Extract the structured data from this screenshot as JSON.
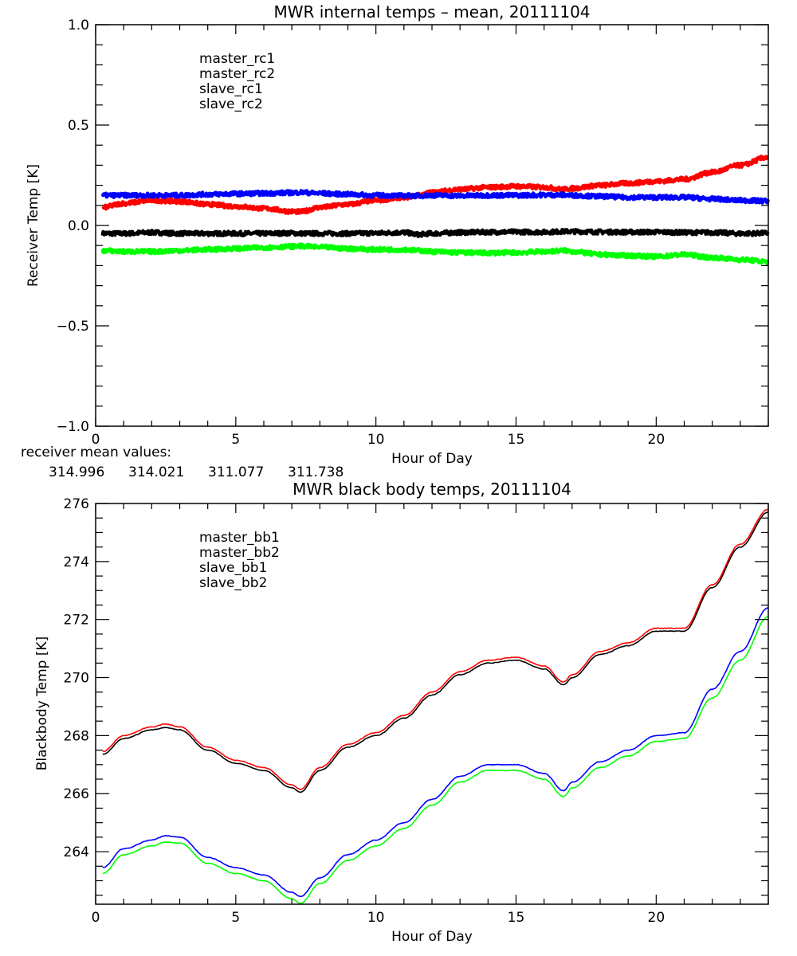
{
  "chart_data": [
    {
      "type": "line",
      "title": "MWR internal temps – mean, 20111104",
      "xlabel": "Hour of Day",
      "ylabel": "Receiver Temp [K]",
      "xlim": [
        0,
        24
      ],
      "ylim": [
        -1.0,
        1.0
      ],
      "xticks": [
        0,
        5,
        10,
        15,
        20
      ],
      "xtick_labels": [
        "0",
        "5",
        "10",
        "15",
        "20"
      ],
      "x_minor_step": 1,
      "yticks": [
        -1.0,
        -0.5,
        0.0,
        0.5,
        1.0
      ],
      "ytick_labels": [
        "−1.0",
        "−0.5",
        "0.0",
        "0.5",
        "1.0"
      ],
      "y_minor_step": 0.1,
      "grid": false,
      "legend_position": "top-left",
      "noisy": true,
      "x": [
        0.25,
        1,
        2,
        3,
        4,
        5,
        6,
        7,
        7.3,
        8,
        9,
        10,
        11,
        11.5,
        12,
        13,
        14,
        15,
        16,
        16.7,
        17,
        18,
        19,
        20,
        21,
        22,
        23,
        24
      ],
      "series": [
        {
          "name": "master_rc1",
          "color": "#000000",
          "values": [
            -0.04,
            -0.04,
            -0.035,
            -0.04,
            -0.04,
            -0.04,
            -0.04,
            -0.038,
            -0.04,
            -0.04,
            -0.04,
            -0.038,
            -0.035,
            -0.045,
            -0.04,
            -0.035,
            -0.033,
            -0.032,
            -0.033,
            -0.03,
            -0.03,
            -0.032,
            -0.033,
            -0.033,
            -0.035,
            -0.035,
            -0.04,
            -0.038
          ]
        },
        {
          "name": "master_rc2",
          "color": "#ff0000",
          "values": [
            0.09,
            0.11,
            0.125,
            0.12,
            0.105,
            0.095,
            0.085,
            0.07,
            0.068,
            0.09,
            0.105,
            0.125,
            0.14,
            0.15,
            0.165,
            0.18,
            0.19,
            0.195,
            0.19,
            0.18,
            0.185,
            0.2,
            0.21,
            0.22,
            0.23,
            0.265,
            0.3,
            0.34
          ]
        },
        {
          "name": "slave_rc1",
          "color": "#0000ff",
          "values": [
            0.15,
            0.15,
            0.15,
            0.15,
            0.155,
            0.158,
            0.16,
            0.163,
            0.165,
            0.16,
            0.155,
            0.15,
            0.148,
            0.148,
            0.15,
            0.148,
            0.15,
            0.15,
            0.152,
            0.152,
            0.15,
            0.145,
            0.14,
            0.14,
            0.14,
            0.132,
            0.125,
            0.122
          ]
        },
        {
          "name": "slave_rc2",
          "color": "#00ff00",
          "values": [
            -0.125,
            -0.13,
            -0.13,
            -0.125,
            -0.12,
            -0.115,
            -0.11,
            -0.105,
            -0.103,
            -0.108,
            -0.115,
            -0.12,
            -0.12,
            -0.125,
            -0.13,
            -0.135,
            -0.137,
            -0.135,
            -0.13,
            -0.125,
            -0.13,
            -0.145,
            -0.15,
            -0.155,
            -0.145,
            -0.16,
            -0.17,
            -0.18
          ]
        }
      ],
      "annotation": {
        "label": "receiver mean values:",
        "values": [
          {
            "text": "314.996",
            "color": "#000000"
          },
          {
            "text": "314.021",
            "color": "#ff0000"
          },
          {
            "text": "311.077",
            "color": "#0000ff"
          },
          {
            "text": "311.738",
            "color": "#00ff00"
          }
        ]
      }
    },
    {
      "type": "line",
      "title": "MWR black body temps, 20111104",
      "xlabel": "Hour of Day",
      "ylabel": "Blackbody Temp [K]",
      "xlim": [
        0,
        24
      ],
      "ylim": [
        262.19,
        276
      ],
      "xticks": [
        0,
        5,
        10,
        15,
        20
      ],
      "xtick_labels": [
        "0",
        "5",
        "10",
        "15",
        "20"
      ],
      "x_minor_step": 1,
      "yticks": [
        264,
        266,
        268,
        270,
        272,
        274,
        276
      ],
      "ytick_labels": [
        "264",
        "266",
        "268",
        "270",
        "272",
        "274",
        "276"
      ],
      "y_minor_step": 0.5,
      "grid": false,
      "legend_position": "top-left",
      "noisy": false,
      "x": [
        0.25,
        1,
        2,
        2.5,
        3,
        4,
        5,
        6,
        7,
        7.3,
        8,
        9,
        10,
        11,
        12,
        13,
        14,
        15,
        16,
        16.7,
        17,
        18,
        19,
        20,
        21,
        22,
        23,
        24
      ],
      "series": [
        {
          "name": "master_bb1",
          "color": "#000000",
          "values": [
            267.35,
            267.9,
            268.2,
            268.28,
            268.2,
            267.5,
            267.05,
            266.8,
            266.2,
            266.05,
            266.8,
            267.6,
            268.0,
            268.6,
            269.4,
            270.1,
            270.5,
            270.6,
            270.3,
            269.75,
            270.0,
            270.8,
            271.1,
            271.6,
            271.6,
            273.1,
            274.5,
            275.7
          ]
        },
        {
          "name": "master_bb2",
          "color": "#ff0000",
          "values": [
            267.45,
            268.0,
            268.3,
            268.4,
            268.3,
            267.6,
            267.15,
            266.9,
            266.3,
            266.15,
            266.9,
            267.7,
            268.1,
            268.7,
            269.5,
            270.2,
            270.6,
            270.7,
            270.4,
            269.85,
            270.1,
            270.9,
            271.2,
            271.7,
            271.7,
            273.2,
            274.6,
            275.8
          ]
        },
        {
          "name": "slave_bb1",
          "color": "#0000ff",
          "values": [
            263.45,
            264.1,
            264.4,
            264.55,
            264.5,
            263.8,
            263.45,
            263.2,
            262.6,
            262.45,
            263.1,
            263.9,
            264.4,
            265.0,
            265.8,
            266.6,
            267.0,
            267.0,
            266.7,
            266.1,
            266.4,
            267.1,
            267.5,
            268.0,
            268.1,
            269.6,
            270.9,
            272.4
          ]
        },
        {
          "name": "slave_bb2",
          "color": "#00ff00",
          "values": [
            263.25,
            263.9,
            264.2,
            264.33,
            264.3,
            263.6,
            263.25,
            263.0,
            262.38,
            262.22,
            262.9,
            263.7,
            264.2,
            264.8,
            265.6,
            266.4,
            266.8,
            266.8,
            266.5,
            265.9,
            266.2,
            266.9,
            267.3,
            267.8,
            267.9,
            269.3,
            270.6,
            272.1
          ]
        }
      ]
    }
  ]
}
